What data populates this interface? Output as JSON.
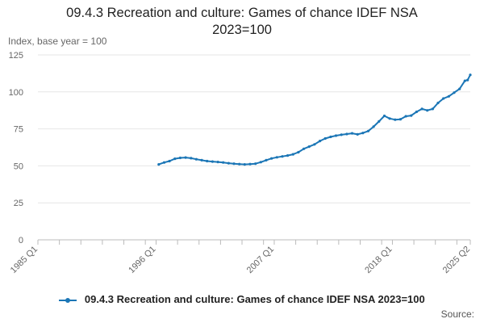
{
  "title_line1": "09.4.3 Recreation and culture: Games of chance IDEF NSA",
  "title_line2": "2023=100",
  "unit_label": "Index, base year = 100",
  "source_label": "Source:",
  "colors": {
    "series": "#1b76b6",
    "grid": "#e6e6e6",
    "axis": "#bbbbbb",
    "text": "#666666"
  },
  "chart_data": {
    "type": "line",
    "title": "09.4.3 Recreation and culture: Games of chance IDEF NSA 2023=100",
    "ylabel": "Index, base year = 100",
    "ylim": [
      0,
      125
    ],
    "yticks": [
      0,
      25,
      50,
      75,
      100,
      125
    ],
    "x_axis": {
      "start": "1985 Q1",
      "end": "2025 Q2",
      "tick_labels": [
        "1985 Q1",
        "1996 Q1",
        "2007 Q1",
        "2018 Q1",
        "2025 Q2"
      ],
      "tick_positions": [
        "1985 Q1",
        "1987 Q1",
        "1989 Q1",
        "1991 Q1",
        "1993 Q1",
        "1995 Q1",
        "1996 Q1",
        "1998 Q1",
        "2000 Q1",
        "2002 Q1",
        "2004 Q1",
        "2006 Q1",
        "2007 Q1",
        "2009 Q1",
        "2011 Q1",
        "2013 Q1",
        "2015 Q1",
        "2017 Q1",
        "2018 Q1",
        "2020 Q1",
        "2022 Q1",
        "2024 Q1",
        "2025 Q2"
      ]
    },
    "grid": true,
    "legend_position": "bottom",
    "series": [
      {
        "name": "09.4.3 Recreation and culture: Games of chance IDEF NSA 2023=100",
        "points": [
          [
            "1996 Q2",
            51
          ],
          [
            "1996 Q4",
            52.3
          ],
          [
            "1997 Q2",
            53.2
          ],
          [
            "1997 Q4",
            54.8
          ],
          [
            "1998 Q2",
            55.4
          ],
          [
            "1998 Q4",
            55.6
          ],
          [
            "1999 Q2",
            55.2
          ],
          [
            "1999 Q4",
            54.5
          ],
          [
            "2000 Q2",
            53.8
          ],
          [
            "2000 Q4",
            53.2
          ],
          [
            "2001 Q2",
            52.9
          ],
          [
            "2001 Q4",
            52.6
          ],
          [
            "2002 Q2",
            52.3
          ],
          [
            "2002 Q4",
            51.8
          ],
          [
            "2003 Q2",
            51.5
          ],
          [
            "2003 Q4",
            51.2
          ],
          [
            "2004 Q2",
            51.0
          ],
          [
            "2004 Q4",
            51.2
          ],
          [
            "2005 Q2",
            51.5
          ],
          [
            "2005 Q4",
            52.5
          ],
          [
            "2006 Q2",
            53.8
          ],
          [
            "2006 Q4",
            55.0
          ],
          [
            "2007 Q2",
            55.8
          ],
          [
            "2007 Q4",
            56.4
          ],
          [
            "2008 Q2",
            57.0
          ],
          [
            "2008 Q4",
            57.8
          ],
          [
            "2009 Q2",
            59.2
          ],
          [
            "2009 Q4",
            61.5
          ],
          [
            "2010 Q2",
            63.0
          ],
          [
            "2010 Q4",
            64.5
          ],
          [
            "2011 Q2",
            66.8
          ],
          [
            "2011 Q4",
            68.5
          ],
          [
            "2012 Q2",
            69.6
          ],
          [
            "2012 Q4",
            70.4
          ],
          [
            "2013 Q2",
            71.0
          ],
          [
            "2013 Q4",
            71.5
          ],
          [
            "2014 Q2",
            72.0
          ],
          [
            "2014 Q4",
            71.3
          ],
          [
            "2015 Q2",
            72.2
          ],
          [
            "2015 Q4",
            73.5
          ],
          [
            "2016 Q2",
            76.5
          ],
          [
            "2016 Q4",
            80.0
          ],
          [
            "2017 Q2",
            83.8
          ],
          [
            "2017 Q4",
            82.0
          ],
          [
            "2018 Q2",
            81.2
          ],
          [
            "2018 Q4",
            81.5
          ],
          [
            "2019 Q2",
            83.5
          ],
          [
            "2019 Q4",
            84.0
          ],
          [
            "2020 Q2",
            86.5
          ],
          [
            "2020 Q4",
            88.5
          ],
          [
            "2021 Q2",
            87.5
          ],
          [
            "2021 Q4",
            88.5
          ],
          [
            "2022 Q2",
            92.5
          ],
          [
            "2022 Q4",
            95.5
          ],
          [
            "2023 Q2",
            97.0
          ],
          [
            "2023 Q4",
            99.5
          ],
          [
            "2024 Q2",
            102.0
          ],
          [
            "2024 Q4",
            107.5
          ],
          [
            "2025 Q1",
            108.0
          ],
          [
            "2025 Q2",
            111.5
          ]
        ]
      }
    ]
  }
}
